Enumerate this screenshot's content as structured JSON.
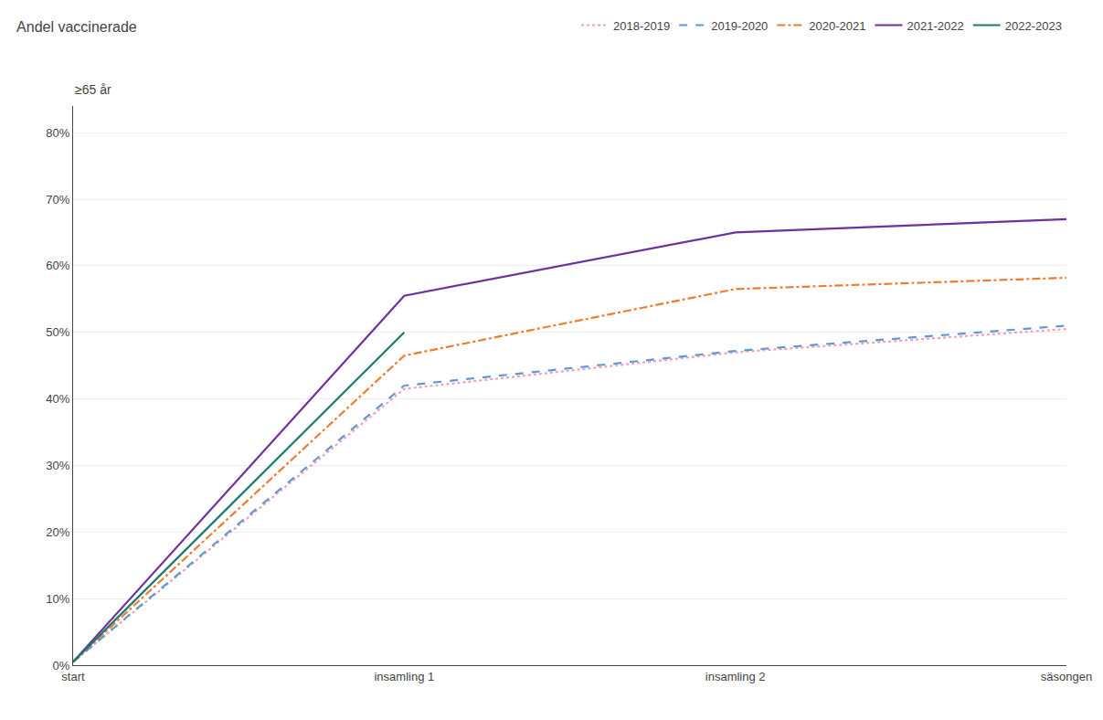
{
  "chart_data": {
    "type": "line",
    "title": "Andel vaccinerade",
    "subtitle": "≥65 år",
    "categories": [
      "start",
      "insamling 1",
      "insamling 2",
      "säsongen"
    ],
    "series": [
      {
        "name": "2018-2019",
        "color": "#f0a0b8",
        "line_style": "dotted",
        "values": [
          0.005,
          0.415,
          0.47,
          0.505
        ]
      },
      {
        "name": "2019-2020",
        "color": "#5b9bd5",
        "line_style": "dashed",
        "values": [
          0.005,
          0.42,
          0.472,
          0.51
        ]
      },
      {
        "name": "2020-2021",
        "color": "#ed7d31",
        "line_style": "dashdot",
        "values": [
          0.005,
          0.465,
          0.565,
          0.582
        ]
      },
      {
        "name": "2021-2022",
        "color": "#7030a0",
        "line_style": "solid",
        "values": [
          0.005,
          0.555,
          0.65,
          0.67
        ]
      },
      {
        "name": "2022-2023",
        "color": "#1a7a6e",
        "line_style": "solid",
        "values": [
          0.005,
          0.5,
          null,
          null
        ]
      }
    ],
    "ylim": [
      0,
      0.84
    ],
    "yticks": [
      {
        "value": 0.0,
        "label": "0%"
      },
      {
        "value": 0.1,
        "label": "10%"
      },
      {
        "value": 0.2,
        "label": "20%"
      },
      {
        "value": 0.3,
        "label": "30%"
      },
      {
        "value": 0.4,
        "label": "40%"
      },
      {
        "value": 0.5,
        "label": "50%"
      },
      {
        "value": 0.6,
        "label": "60%"
      },
      {
        "value": 0.7,
        "label": "70%"
      },
      {
        "value": 0.8,
        "label": "80%"
      }
    ],
    "grid": true,
    "legend": "top"
  }
}
